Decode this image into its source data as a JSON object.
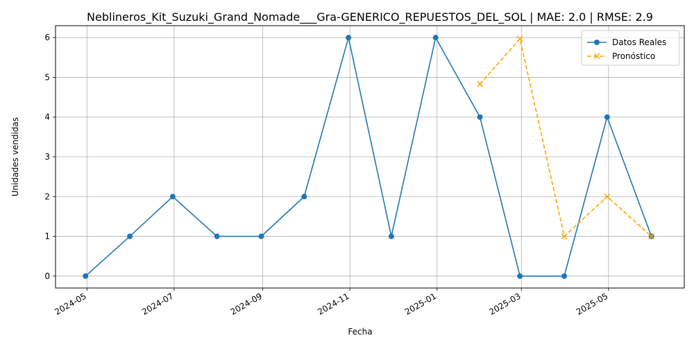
{
  "chart_data": {
    "type": "line",
    "title": "Neblineros_Kit_Suzuki_Grand_Nomade___Gra-GENERICO_REPUESTOS_DEL_SOL | MAE: 2.0 | RMSE: 2.9",
    "xlabel": "Fecha",
    "ylabel": "Unidades vendidas",
    "x_ticks": [
      "2024-05",
      "2024-07",
      "2024-09",
      "2024-11",
      "2025-01",
      "2025-03",
      "2025-05"
    ],
    "y_ticks": [
      0,
      1,
      2,
      3,
      4,
      5,
      6
    ],
    "ylim": [
      -0.3,
      6.3
    ],
    "xlim": [
      "2024-04-09",
      "2025-06-23"
    ],
    "grid": true,
    "legend_position": "top-right",
    "series": [
      {
        "name": "Datos Reales",
        "color": "#1f77b4",
        "style": "solid",
        "marker": "circle",
        "x": [
          "2024-04-30",
          "2024-05-31",
          "2024-06-30",
          "2024-07-31",
          "2024-08-31",
          "2024-09-30",
          "2024-10-31",
          "2024-11-30",
          "2024-12-31",
          "2025-01-31",
          "2025-02-28",
          "2025-03-31",
          "2025-04-30",
          "2025-05-31"
        ],
        "values": [
          0,
          1,
          2,
          1,
          1,
          2,
          6,
          1,
          6,
          4,
          0,
          0,
          4,
          1
        ]
      },
      {
        "name": "Pronóstico",
        "color": "#ffa500",
        "style": "dashed",
        "marker": "x",
        "x": [
          "2025-01-31",
          "2025-02-28",
          "2025-03-31",
          "2025-04-30",
          "2025-05-31"
        ],
        "values": [
          4.83,
          5.97,
          1.0,
          2.0,
          1.0
        ]
      }
    ]
  }
}
